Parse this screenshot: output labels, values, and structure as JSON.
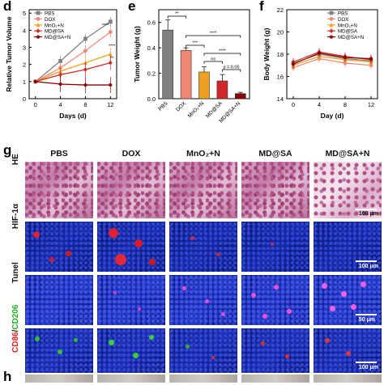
{
  "panel_letters": {
    "d": "d",
    "e": "e",
    "f": "f",
    "g": "g",
    "h": "h"
  },
  "groups": [
    "PBS",
    "DOX",
    "MnO₂+N",
    "MD@SA",
    "MD@SA+N"
  ],
  "colors": {
    "PBS": "#808080",
    "DOX": "#f08878",
    "MnO2N": "#f0a020",
    "MDSA": "#d02828",
    "MDSAN": "#8b0000"
  },
  "rows": {
    "he": "HE",
    "hif": "HIF-1α",
    "tunel": "Tunel",
    "cd86": "CD86",
    "slash": "/",
    "cd206": "CD206"
  },
  "scale_bars": {
    "he": "100 μm",
    "hif": "100 μm",
    "tunel": "50 μm",
    "cd": "100 μm"
  },
  "chart_data": [
    {
      "type": "line",
      "panel": "d",
      "xlabel": "Days (d)",
      "ylabel": "Relative Tumor Volume",
      "x": [
        0,
        4,
        8,
        12
      ],
      "xticks": [
        "0",
        "4",
        "8",
        "12"
      ],
      "yticks": [
        "0",
        "1",
        "2",
        "3",
        "4",
        "5"
      ],
      "xlim": [
        -1,
        13
      ],
      "ylim": [
        0,
        5.2
      ],
      "legend": [
        "PBS",
        "DOX",
        "MnO₂+N",
        "MD@SA",
        "MD@SA+N"
      ],
      "series": [
        {
          "name": "PBS",
          "values": [
            1,
            2.2,
            3.5,
            4.5
          ]
        },
        {
          "name": "DOX",
          "values": [
            1,
            1.8,
            2.8,
            3.9
          ]
        },
        {
          "name": "MnO₂+N",
          "values": [
            1,
            1.6,
            2.1,
            2.6
          ]
        },
        {
          "name": "MD@SA",
          "values": [
            1,
            1.4,
            1.7,
            2.1
          ]
        },
        {
          "name": "MD@SA+N",
          "values": [
            1,
            0.85,
            0.8,
            0.8
          ]
        }
      ],
      "annotations": [
        "****",
        "****",
        "**"
      ]
    },
    {
      "type": "bar",
      "panel": "e",
      "ylabel": "Tumor Weight (g)",
      "categories": [
        "PBS",
        "DOX",
        "MnO₂+N",
        "MD@SA",
        "MD@SA+N"
      ],
      "values": [
        0.54,
        0.38,
        0.21,
        0.14,
        0.04
      ],
      "yticks": [
        "0.0",
        "0.2",
        "0.4",
        "0.6"
      ],
      "ylim": [
        0,
        0.7
      ],
      "annotations": [
        "**",
        "****",
        "***",
        "****",
        "**",
        "ns",
        "p = 0.05"
      ]
    },
    {
      "type": "line",
      "panel": "f",
      "xlabel": "Day (d)",
      "ylabel": "Body Weight (g)",
      "x": [
        0,
        4,
        8,
        12
      ],
      "xticks": [
        "0",
        "4",
        "8",
        "12"
      ],
      "yticks": [
        "14",
        "16",
        "18",
        "20",
        "22"
      ],
      "ylim": [
        14,
        22
      ],
      "legend": [
        "PBS",
        "DOX",
        "MnO₂+N",
        "MD@SA",
        "MD@SA+N"
      ],
      "series": [
        {
          "name": "PBS",
          "values": [
            17.2,
            18.0,
            17.6,
            17.4
          ]
        },
        {
          "name": "DOX",
          "values": [
            16.8,
            17.6,
            17.2,
            17.0
          ]
        },
        {
          "name": "MnO₂+N",
          "values": [
            17.0,
            17.8,
            17.5,
            17.3
          ]
        },
        {
          "name": "MD@SA",
          "values": [
            17.3,
            18.2,
            17.8,
            17.5
          ]
        },
        {
          "name": "MD@SA+N",
          "values": [
            17.1,
            18.1,
            17.7,
            17.6
          ]
        }
      ]
    }
  ]
}
